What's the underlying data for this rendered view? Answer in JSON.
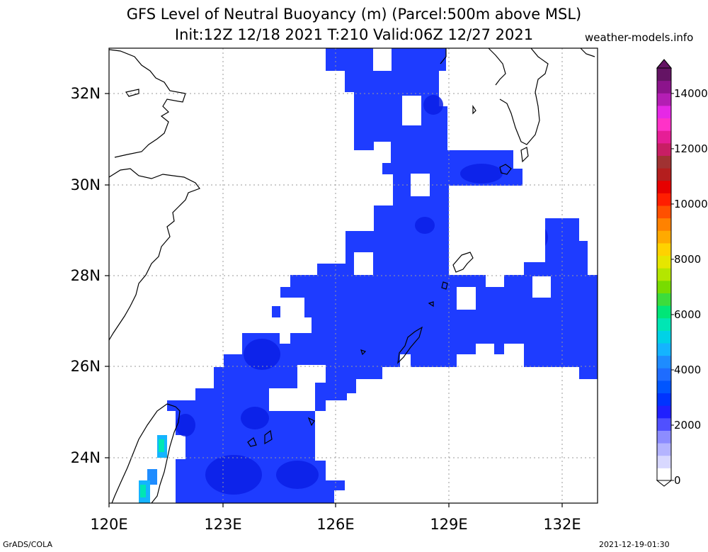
{
  "header": {
    "title_line1": "GFS Level of Neutral Buoyancy (m) (Parcel:500m above MSL)",
    "title_line2": "Init:12Z 12/18 2021 T:210 Valid:06Z 12/27 2021",
    "site": "weather-models.info"
  },
  "map": {
    "lon_range": [
      120,
      133
    ],
    "lat_range": [
      23,
      33
    ],
    "x_ticks": [
      {
        "value": 120,
        "label": "120E"
      },
      {
        "value": 123,
        "label": "123E"
      },
      {
        "value": 126,
        "label": "126E"
      },
      {
        "value": 129,
        "label": "129E"
      },
      {
        "value": 132,
        "label": "132E"
      }
    ],
    "y_ticks": [
      {
        "value": 24,
        "label": "24N"
      },
      {
        "value": 26,
        "label": "26N"
      },
      {
        "value": 28,
        "label": "28N"
      },
      {
        "value": 30,
        "label": "30N"
      },
      {
        "value": 32,
        "label": "32N"
      }
    ],
    "gridlines": "dotted"
  },
  "colorbar": {
    "labels": [
      "0",
      "2000",
      "4000",
      "6000",
      "8000",
      "10000",
      "12000",
      "14000"
    ],
    "colors": [
      "#ffffff",
      "#d8d8ff",
      "#b4b4ff",
      "#8c8cff",
      "#5050ff",
      "#2020ff",
      "#0033ff",
      "#0055ff",
      "#1e6cff",
      "#1e8cff",
      "#14b4ff",
      "#00d2e6",
      "#00e6b4",
      "#00e678",
      "#3cdc3c",
      "#78dc00",
      "#b4e600",
      "#e6e600",
      "#ffd200",
      "#ffaa00",
      "#ff8200",
      "#ff5000",
      "#ff1e00",
      "#e60000",
      "#b41e1e",
      "#a03232",
      "#c81e64",
      "#e61e96",
      "#ff32c8",
      "#e628e6",
      "#b41eb4",
      "#8c148c",
      "#641464"
    ]
  },
  "footer": {
    "left": "GrADS/COLA",
    "right": "2021-12-19-01:30"
  }
}
